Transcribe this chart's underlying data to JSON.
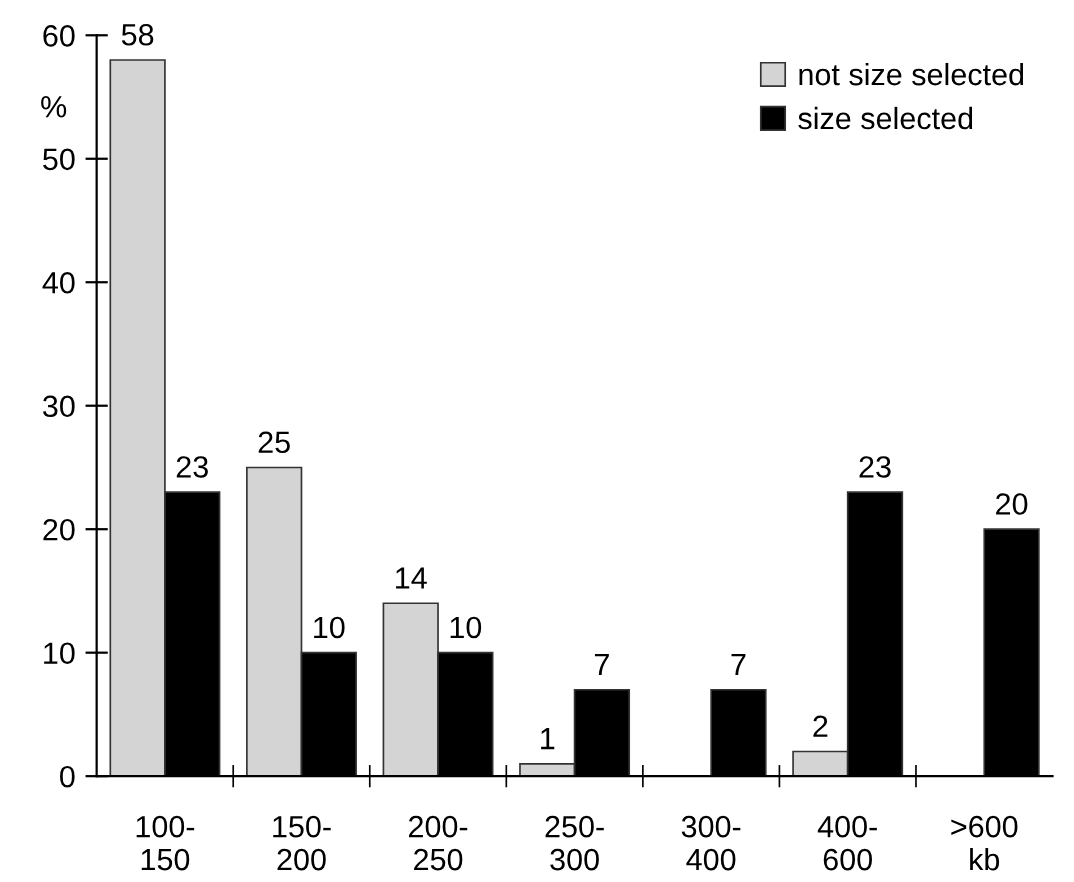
{
  "chart_data": {
    "type": "bar",
    "categories": [
      "100-\n150",
      "150-\n200",
      "200-\n250",
      "250-\n300",
      "300-\n400",
      "400-\n600",
      ">600\nkb"
    ],
    "ylabel": "%",
    "series": [
      {
        "name": "not size selected",
        "color": "#d4d4d4",
        "values": [
          58,
          25,
          14,
          1,
          null,
          2,
          null
        ]
      },
      {
        "name": "size selected",
        "color": "#000000",
        "values": [
          23,
          10,
          10,
          7,
          7,
          23,
          20
        ]
      }
    ],
    "ylim": [
      0,
      60
    ],
    "yticks": [
      0,
      10,
      20,
      30,
      40,
      50,
      60
    ],
    "data_labels": true,
    "grid": false,
    "legend": "top right"
  }
}
